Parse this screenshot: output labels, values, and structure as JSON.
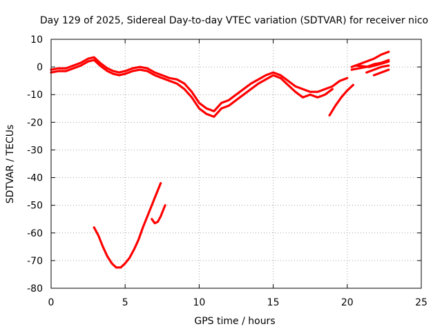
{
  "chart_data": {
    "type": "line",
    "title": "Day 129 of 2025, Sidereal Day-to-day VTEC variation (SDTVAR) for receiver nico",
    "xlabel": "GPS time / hours",
    "ylabel": "SDTVAR / TECUs",
    "xlim": [
      0,
      25
    ],
    "ylim": [
      -80,
      10
    ],
    "x_ticks": [
      0,
      5,
      10,
      15,
      20,
      25
    ],
    "y_ticks": [
      -80,
      -70,
      -60,
      -50,
      -40,
      -30,
      -20,
      -10,
      0,
      10
    ],
    "grid": true,
    "color": "#ff0000",
    "series": [
      {
        "name": "main-trace-upper",
        "x": [
          0,
          0.5,
          1,
          1.5,
          2,
          2.5,
          2.9,
          3.3,
          3.8,
          4.2,
          4.6,
          5.0,
          5.5,
          6.0,
          6.5,
          7.0,
          7.5,
          8.0,
          8.5,
          9.0,
          9.5,
          10.0,
          10.5,
          11.0,
          11.5,
          12.0,
          12.5,
          13.0,
          13.5,
          14.0,
          14.5,
          15.0,
          15.5,
          16.0,
          16.5,
          17.0,
          17.5,
          18.0,
          18.5,
          19.0,
          19.5,
          20.0
        ],
        "y": [
          -1,
          -0.5,
          -0.5,
          0.5,
          1.5,
          3,
          3.5,
          1.5,
          -0.5,
          -1.5,
          -2,
          -1.5,
          -0.5,
          0,
          -0.5,
          -2,
          -3,
          -4,
          -4.5,
          -6,
          -9,
          -13,
          -15,
          -16,
          -13,
          -12,
          -10,
          -8,
          -6,
          -4.5,
          -3,
          -2,
          -3,
          -5,
          -7,
          -8,
          -9,
          -9,
          -8,
          -7,
          -5,
          -4
        ]
      },
      {
        "name": "main-trace-lower",
        "x": [
          0,
          0.5,
          1,
          1.5,
          2,
          2.5,
          2.9,
          3.3,
          3.8,
          4.2,
          4.6,
          5.0,
          5.5,
          6.0,
          6.5,
          7.0,
          7.5,
          8.0,
          8.5,
          9.0,
          9.5,
          10.0,
          10.5,
          11.0,
          11.5,
          12.0,
          12.5,
          13.0,
          13.5,
          14.0,
          14.5,
          15.0,
          15.5,
          16.0,
          16.5,
          17.0,
          17.5,
          18.0,
          18.5,
          19.0
        ],
        "y": [
          -2,
          -1.5,
          -1.5,
          -0.5,
          0.5,
          2,
          2.5,
          0.5,
          -1.5,
          -2.5,
          -3,
          -2.5,
          -1.5,
          -1,
          -1.5,
          -3,
          -4,
          -5,
          -6,
          -8,
          -11,
          -15,
          -17,
          -18,
          -15,
          -14,
          -12,
          -10,
          -8,
          -6,
          -4.5,
          -3,
          -4,
          -6.5,
          -9,
          -11,
          -10,
          -11,
          -10,
          -8
        ]
      },
      {
        "name": "late-segment-a",
        "x": [
          20.3,
          20.8,
          21.3,
          21.8,
          22.3,
          22.8
        ],
        "y": [
          0,
          1,
          2,
          3,
          4.5,
          5.5
        ]
      },
      {
        "name": "late-segment-b",
        "x": [
          20.3,
          20.8,
          21.3,
          21.8,
          22.3,
          22.8
        ],
        "y": [
          -1,
          -0.5,
          0,
          1,
          1.5,
          2.5
        ]
      },
      {
        "name": "late-segment-c",
        "x": [
          21.3,
          21.8,
          22.3,
          22.8
        ],
        "y": [
          -2,
          -1,
          0,
          0.5
        ]
      },
      {
        "name": "late-segment-d",
        "x": [
          21.8,
          22.3,
          22.8
        ],
        "y": [
          -3,
          -2,
          -1
        ]
      },
      {
        "name": "late-segment-e",
        "x": [
          20.6,
          21.5,
          22.2,
          22.8
        ],
        "y": [
          0.5,
          0,
          1,
          2
        ]
      },
      {
        "name": "descending-segment",
        "x": [
          18.8,
          19.2,
          19.6,
          20.0,
          20.4
        ],
        "y": [
          -17.5,
          -14,
          -11,
          -8.5,
          -6.5
        ]
      },
      {
        "name": "deep-trough",
        "x": [
          2.9,
          3.2,
          3.5,
          3.8,
          4.1,
          4.4,
          4.7,
          5.0,
          5.3,
          5.6,
          5.9,
          6.2,
          6.5,
          6.8,
          7.1,
          7.4
        ],
        "y": [
          -58,
          -61,
          -65,
          -68.5,
          -71,
          -72.5,
          -72.5,
          -71,
          -69,
          -66,
          -62.5,
          -58,
          -54,
          -50,
          -46,
          -42
        ]
      },
      {
        "name": "trough-side-hook",
        "x": [
          6.8,
          7.0,
          7.2,
          7.4,
          7.7
        ],
        "y": [
          -55,
          -56.5,
          -56,
          -54,
          -50
        ]
      }
    ]
  }
}
